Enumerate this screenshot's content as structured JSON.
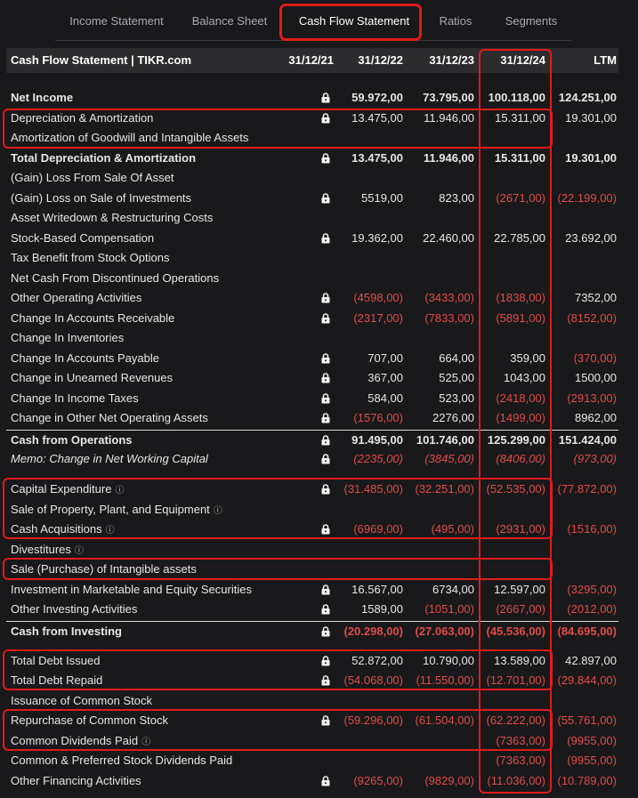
{
  "tabs": [
    {
      "label": "Income Statement",
      "active": false
    },
    {
      "label": "Balance Sheet",
      "active": false
    },
    {
      "label": "Cash Flow Statement",
      "active": true
    },
    {
      "label": "Ratios",
      "active": false
    },
    {
      "label": "Segments",
      "active": false
    }
  ],
  "header": {
    "title": "Cash Flow Statement | TIKR.com",
    "col1": "31/12/21",
    "col2": "31/12/22",
    "col3": "31/12/23",
    "col4": "31/12/24",
    "col5": "LTM"
  },
  "rows": [
    {
      "label": "Net Income",
      "bold": true,
      "lock": true,
      "info": false,
      "v": [
        "59.972,00",
        "73.795,00",
        "100.118,00",
        "124.251,00"
      ]
    },
    {
      "label": "Depreciation & Amortization",
      "bold": false,
      "lock": true,
      "info": false,
      "v": [
        "13.475,00",
        "11.946,00",
        "15.311,00",
        "19.301,00"
      ]
    },
    {
      "label": "Amortization of Goodwill and Intangible Assets",
      "bold": false,
      "lock": false,
      "info": false,
      "v": [
        "",
        "",
        "",
        ""
      ]
    },
    {
      "label": "Total Depreciation & Amortization",
      "bold": true,
      "lock": true,
      "info": false,
      "v": [
        "13.475,00",
        "11.946,00",
        "15.311,00",
        "19.301,00"
      ]
    },
    {
      "label": "(Gain) Loss From Sale Of Asset",
      "bold": false,
      "lock": false,
      "info": false,
      "v": [
        "",
        "",
        "",
        ""
      ]
    },
    {
      "label": "(Gain) Loss on Sale of Investments",
      "bold": false,
      "lock": true,
      "info": false,
      "v": [
        "5519,00",
        "823,00",
        "(2671,00)",
        "(22.199,00)"
      ]
    },
    {
      "label": "Asset Writedown & Restructuring Costs",
      "bold": false,
      "lock": false,
      "info": false,
      "v": [
        "",
        "",
        "",
        ""
      ]
    },
    {
      "label": "Stock-Based Compensation",
      "bold": false,
      "lock": true,
      "info": false,
      "v": [
        "19.362,00",
        "22.460,00",
        "22.785,00",
        "23.692,00"
      ]
    },
    {
      "label": "Tax Benefit from Stock Options",
      "bold": false,
      "lock": false,
      "info": false,
      "v": [
        "",
        "",
        "",
        ""
      ]
    },
    {
      "label": "Net Cash From Discontinued Operations",
      "bold": false,
      "lock": false,
      "info": false,
      "v": [
        "",
        "",
        "",
        ""
      ]
    },
    {
      "label": "Other Operating Activities",
      "bold": false,
      "lock": true,
      "info": false,
      "v": [
        "(4598,00)",
        "(3433,00)",
        "(1838,00)",
        "7352,00"
      ]
    },
    {
      "label": "Change In Accounts Receivable",
      "bold": false,
      "lock": true,
      "info": false,
      "v": [
        "(2317,00)",
        "(7833,00)",
        "(5891,00)",
        "(8152,00)"
      ]
    },
    {
      "label": "Change In Inventories",
      "bold": false,
      "lock": false,
      "info": false,
      "v": [
        "",
        "",
        "",
        ""
      ]
    },
    {
      "label": "Change In Accounts Payable",
      "bold": false,
      "lock": true,
      "info": false,
      "v": [
        "707,00",
        "664,00",
        "359,00",
        "(370,00)"
      ]
    },
    {
      "label": "Change in Unearned Revenues",
      "bold": false,
      "lock": true,
      "info": false,
      "v": [
        "367,00",
        "525,00",
        "1043,00",
        "1500,00"
      ]
    },
    {
      "label": "Change In Income Taxes",
      "bold": false,
      "lock": true,
      "info": false,
      "v": [
        "584,00",
        "523,00",
        "(2418,00)",
        "(2913,00)"
      ]
    },
    {
      "label": "Change in Other Net Operating Assets",
      "bold": false,
      "lock": true,
      "info": false,
      "v": [
        "(1576,00)",
        "2276,00",
        "(1499,00)",
        "8962,00"
      ]
    },
    {
      "label": "Cash from Operations",
      "bold": true,
      "lock": true,
      "info": false,
      "topBorder": true,
      "v": [
        "91.495,00",
        "101.746,00",
        "125.299,00",
        "151.424,00"
      ]
    },
    {
      "label": "Memo: Change in Net Working Capital",
      "bold": false,
      "italic": true,
      "lock": true,
      "info": false,
      "v": [
        "(2235,00)",
        "(3845,00)",
        "(8406,00)",
        "(973,00)"
      ]
    },
    {
      "label": "Capital Expenditure",
      "bold": false,
      "lock": true,
      "info": true,
      "v": [
        "(31.485,00)",
        "(32.251,00)",
        "(52.535,00)",
        "(77.872,00)"
      ]
    },
    {
      "label": "Sale of Property, Plant, and Equipment",
      "bold": false,
      "lock": false,
      "info": true,
      "v": [
        "",
        "",
        "",
        ""
      ]
    },
    {
      "label": "Cash Acquisitions",
      "bold": false,
      "lock": true,
      "info": true,
      "v": [
        "(6969,00)",
        "(495,00)",
        "(2931,00)",
        "(1516,00)"
      ]
    },
    {
      "label": "Divestitures",
      "bold": false,
      "lock": false,
      "info": true,
      "v": [
        "",
        "",
        "",
        ""
      ]
    },
    {
      "label": "Sale (Purchase) of Intangible assets",
      "bold": false,
      "lock": false,
      "info": false,
      "v": [
        "",
        "",
        "",
        ""
      ]
    },
    {
      "label": "Investment in Marketable and Equity Securities",
      "bold": false,
      "lock": true,
      "info": false,
      "v": [
        "16.567,00",
        "6734,00",
        "12.597,00",
        "(3295,00)"
      ]
    },
    {
      "label": "Other Investing Activities",
      "bold": false,
      "lock": true,
      "info": false,
      "v": [
        "1589,00",
        "(1051,00)",
        "(2667,00)",
        "(2012,00)"
      ]
    },
    {
      "label": "Cash from Investing",
      "bold": true,
      "lock": true,
      "info": false,
      "topBorder": true,
      "v": [
        "(20.298,00)",
        "(27.063,00)",
        "(45.536,00)",
        "(84.695,00)"
      ]
    },
    {
      "label": "Total Debt Issued",
      "bold": false,
      "lock": true,
      "info": false,
      "v": [
        "52.872,00",
        "10.790,00",
        "13.589,00",
        "42.897,00"
      ]
    },
    {
      "label": "Total Debt Repaid",
      "bold": false,
      "lock": true,
      "info": false,
      "v": [
        "(54.068,00)",
        "(11.550,00)",
        "(12.701,00)",
        "(29.844,00)"
      ]
    },
    {
      "label": "Issuance of Common Stock",
      "bold": false,
      "lock": false,
      "info": false,
      "v": [
        "",
        "",
        "",
        ""
      ]
    },
    {
      "label": "Repurchase of Common Stock",
      "bold": false,
      "lock": true,
      "info": false,
      "v": [
        "(59.296,00)",
        "(61.504,00)",
        "(62.222,00)",
        "(55.761,00)"
      ]
    },
    {
      "label": "Common Dividends Paid",
      "bold": false,
      "lock": false,
      "info": true,
      "v": [
        "",
        "",
        "(7363,00)",
        "(9955,00)"
      ]
    },
    {
      "label": "Common & Preferred Stock Dividends Paid",
      "bold": false,
      "lock": false,
      "info": false,
      "v": [
        "",
        "",
        "(7363,00)",
        "(9955,00)"
      ]
    },
    {
      "label": "Other Financing Activities",
      "bold": false,
      "lock": true,
      "info": false,
      "v": [
        "(9265,00)",
        "(9829,00)",
        "(11.036,00)",
        "(10.789,00)"
      ]
    }
  ],
  "colors": {
    "accent": "#e01b1b",
    "negative": "#e04b4b",
    "background": "#19191b",
    "header": "#2c2c2f"
  }
}
